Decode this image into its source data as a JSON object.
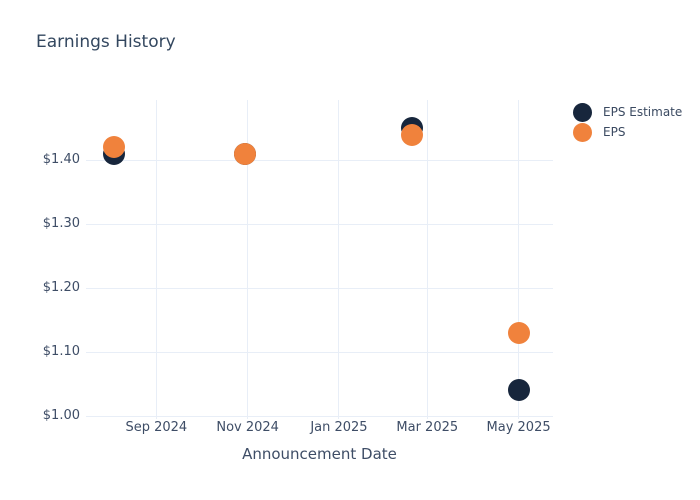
{
  "chart_data": {
    "type": "scatter",
    "title": "Earnings History",
    "xlabel": "Announcement Date",
    "ylabel": "",
    "grid": true,
    "legend_position": "right",
    "background_color": "#ffffff",
    "gridline_color": "#e8eef7",
    "axis_line_color": "#dbe2ee",
    "text_color": "#3e4d66",
    "title_color": "#33475f",
    "ylim": [
      1.0,
      1.494
    ],
    "x_range": [
      "2024-07-16",
      "2025-05-24"
    ],
    "y_ticks": [
      {
        "label": "$1.00",
        "value": 1.0
      },
      {
        "label": "$1.10",
        "value": 1.1
      },
      {
        "label": "$1.20",
        "value": 1.2
      },
      {
        "label": "$1.30",
        "value": 1.3
      },
      {
        "label": "$1.40",
        "value": 1.4
      }
    ],
    "x_ticks": [
      {
        "label": "Sep 2024",
        "date": "2024-09-01"
      },
      {
        "label": "Nov 2024",
        "date": "2024-11-01"
      },
      {
        "label": "Jan 2025",
        "date": "2025-01-01"
      },
      {
        "label": "Mar 2025",
        "date": "2025-03-01"
      },
      {
        "label": "May 2025",
        "date": "2025-05-01"
      }
    ],
    "series": [
      {
        "name": "EPS Estimate",
        "color": "#17263c",
        "points": [
          {
            "date": "2024-08-04",
            "value": 1.41
          },
          {
            "date": "2024-10-30",
            "value": 1.41
          },
          {
            "date": "2025-02-19",
            "value": 1.45
          },
          {
            "date": "2025-05-01",
            "value": 1.04
          }
        ]
      },
      {
        "name": "EPS",
        "color": "#f0823c",
        "points": [
          {
            "date": "2024-08-04",
            "value": 1.42
          },
          {
            "date": "2024-10-30",
            "value": 1.41
          },
          {
            "date": "2025-02-19",
            "value": 1.44
          },
          {
            "date": "2025-05-01",
            "value": 1.13
          }
        ]
      }
    ]
  }
}
